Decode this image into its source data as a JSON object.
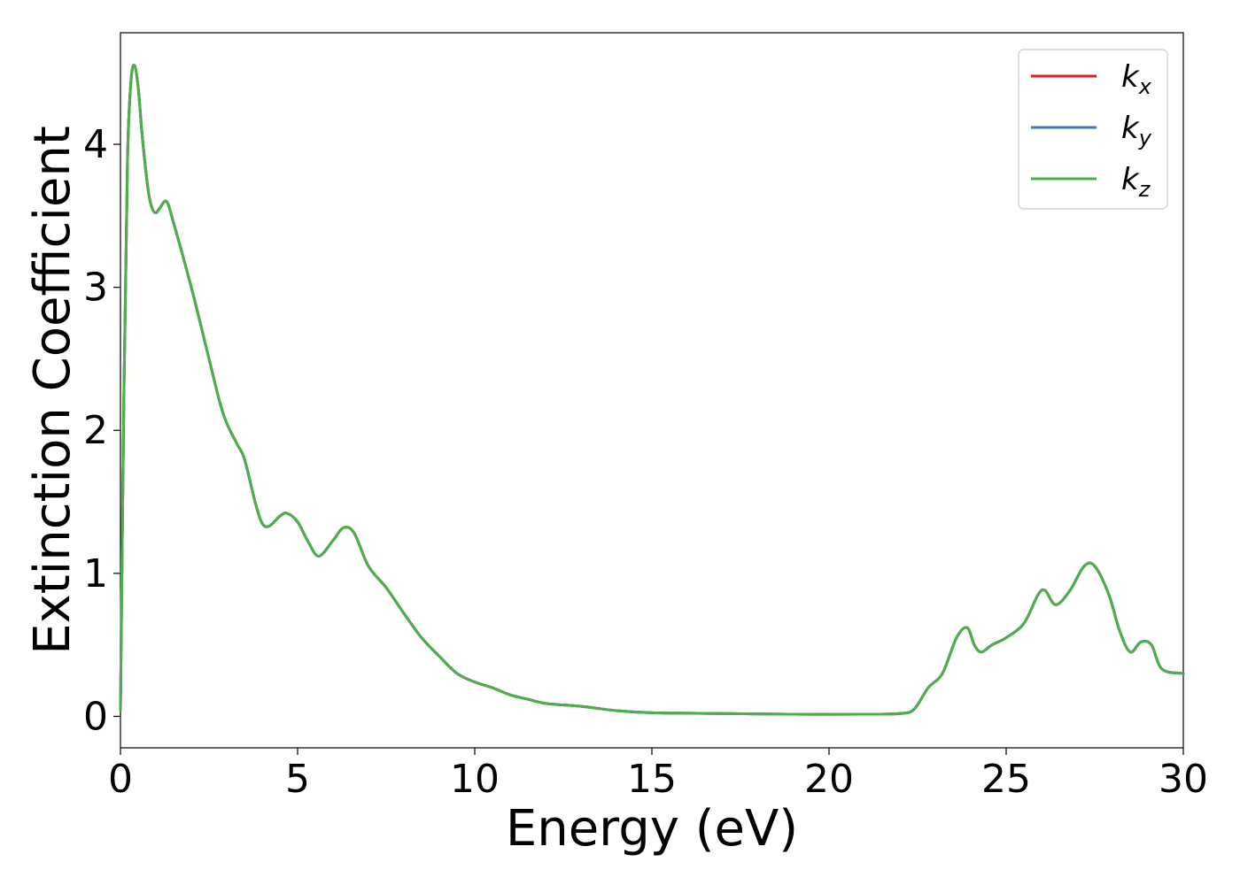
{
  "chart_data": {
    "type": "line",
    "title": "",
    "xlabel": "Energy (eV)",
    "ylabel": "Extinction Coefficient",
    "xlim": [
      0,
      30
    ],
    "ylim": [
      -0.22,
      4.78
    ],
    "xticks": [
      0,
      5,
      10,
      15,
      20,
      25,
      30
    ],
    "yticks": [
      0,
      1,
      2,
      3,
      4
    ],
    "grid": false,
    "legend": {
      "placement": "top-right"
    },
    "x": [
      0,
      0.1,
      0.2,
      0.3,
      0.4,
      0.5,
      0.6,
      0.7,
      0.8,
      0.9,
      1.0,
      1.1,
      1.3,
      1.5,
      2.0,
      2.5,
      2.8,
      3.0,
      3.3,
      3.5,
      3.8,
      4.0,
      4.2,
      4.5,
      4.7,
      5.0,
      5.3,
      5.6,
      6.0,
      6.3,
      6.6,
      7.0,
      7.5,
      8.0,
      8.5,
      9.0,
      9.5,
      10.0,
      10.5,
      11.0,
      11.5,
      12.0,
      13.0,
      14.0,
      15.0,
      17.0,
      19.0,
      21.0,
      22.0,
      22.4,
      22.8,
      23.2,
      23.6,
      23.9,
      24.1,
      24.3,
      24.6,
      25.0,
      25.5,
      25.9,
      26.1,
      26.4,
      26.8,
      27.2,
      27.5,
      27.9,
      28.2,
      28.5,
      28.8,
      29.1,
      29.4,
      30.0
    ],
    "series": [
      {
        "name": "k_x",
        "label_base": "k",
        "label_sub": "x",
        "color": "#e41a1c",
        "values": [
          0.05,
          2.3,
          3.9,
          4.45,
          4.55,
          4.4,
          4.1,
          3.85,
          3.65,
          3.55,
          3.52,
          3.55,
          3.6,
          3.45,
          3.0,
          2.5,
          2.2,
          2.05,
          1.9,
          1.8,
          1.5,
          1.35,
          1.33,
          1.4,
          1.42,
          1.36,
          1.22,
          1.12,
          1.23,
          1.32,
          1.28,
          1.05,
          0.9,
          0.72,
          0.55,
          0.42,
          0.3,
          0.24,
          0.2,
          0.15,
          0.12,
          0.09,
          0.07,
          0.04,
          0.025,
          0.02,
          0.015,
          0.015,
          0.02,
          0.05,
          0.2,
          0.3,
          0.55,
          0.62,
          0.5,
          0.45,
          0.5,
          0.55,
          0.65,
          0.85,
          0.88,
          0.78,
          0.88,
          1.05,
          1.05,
          0.85,
          0.6,
          0.45,
          0.52,
          0.5,
          0.33,
          0.3
        ]
      },
      {
        "name": "k_y",
        "label_base": "k",
        "label_sub": "y",
        "color": "#377eb8",
        "values": [
          0.05,
          2.3,
          3.9,
          4.45,
          4.55,
          4.4,
          4.1,
          3.85,
          3.65,
          3.55,
          3.52,
          3.55,
          3.6,
          3.45,
          3.0,
          2.5,
          2.2,
          2.05,
          1.9,
          1.8,
          1.5,
          1.35,
          1.33,
          1.4,
          1.42,
          1.36,
          1.22,
          1.12,
          1.23,
          1.32,
          1.28,
          1.05,
          0.9,
          0.72,
          0.55,
          0.42,
          0.3,
          0.24,
          0.2,
          0.15,
          0.12,
          0.09,
          0.07,
          0.04,
          0.025,
          0.02,
          0.015,
          0.015,
          0.02,
          0.05,
          0.2,
          0.3,
          0.55,
          0.62,
          0.5,
          0.45,
          0.5,
          0.55,
          0.65,
          0.85,
          0.88,
          0.78,
          0.88,
          1.05,
          1.05,
          0.85,
          0.6,
          0.45,
          0.52,
          0.5,
          0.33,
          0.3
        ]
      },
      {
        "name": "k_z",
        "label_base": "k",
        "label_sub": "z",
        "color": "#4daf4a",
        "values": [
          0.05,
          2.3,
          3.9,
          4.45,
          4.55,
          4.4,
          4.1,
          3.85,
          3.65,
          3.55,
          3.52,
          3.55,
          3.6,
          3.45,
          3.0,
          2.5,
          2.2,
          2.05,
          1.9,
          1.8,
          1.5,
          1.35,
          1.33,
          1.4,
          1.42,
          1.36,
          1.22,
          1.12,
          1.23,
          1.32,
          1.28,
          1.05,
          0.9,
          0.72,
          0.55,
          0.42,
          0.3,
          0.24,
          0.2,
          0.15,
          0.12,
          0.09,
          0.07,
          0.04,
          0.025,
          0.02,
          0.015,
          0.015,
          0.02,
          0.05,
          0.2,
          0.3,
          0.55,
          0.62,
          0.5,
          0.45,
          0.5,
          0.55,
          0.65,
          0.85,
          0.88,
          0.78,
          0.88,
          1.05,
          1.05,
          0.85,
          0.6,
          0.45,
          0.52,
          0.5,
          0.33,
          0.3
        ]
      }
    ]
  }
}
